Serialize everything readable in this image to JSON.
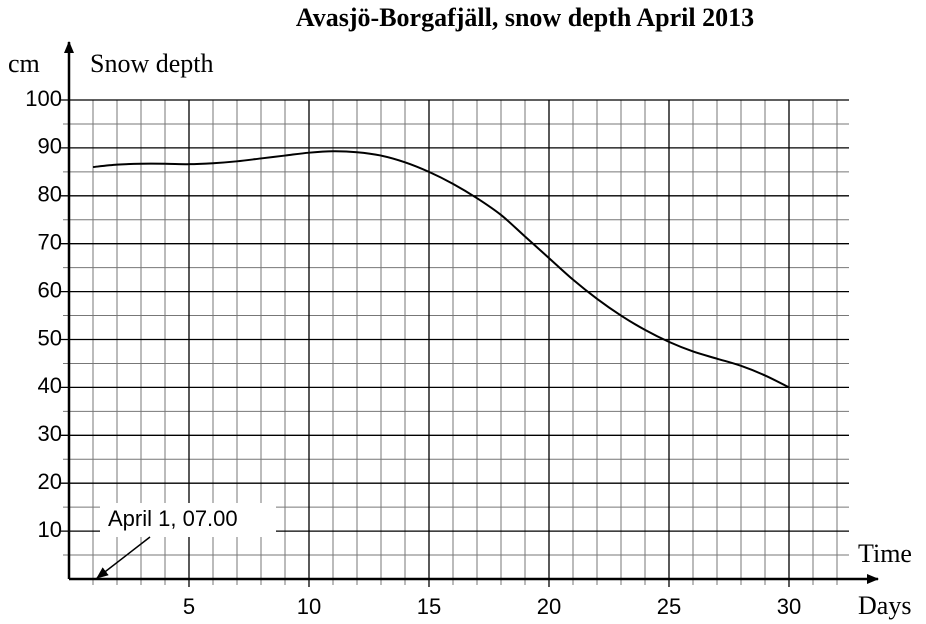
{
  "chart_data": {
    "type": "line",
    "title": "Avasjö-Borgafjäll, snow depth April 2013",
    "y_unit": "cm",
    "y_label": "Snow depth",
    "x_label": "Time",
    "x_unit": "Days",
    "annotation": "April 1, 07.00",
    "x": [
      1,
      2,
      3,
      4,
      5,
      6,
      7,
      8,
      9,
      10,
      11,
      12,
      13,
      14,
      15,
      16,
      17,
      18,
      19,
      20,
      21,
      22,
      23,
      24,
      25,
      26,
      27,
      28,
      29,
      30
    ],
    "series": [
      {
        "name": "Snow depth",
        "color": "#000000",
        "values": [
          86,
          86.5,
          86.7,
          86.7,
          86.6,
          86.8,
          87.2,
          87.8,
          88.4,
          89,
          89.3,
          89.1,
          88.4,
          87,
          85,
          82.5,
          79.5,
          76,
          71.5,
          67,
          62.5,
          58.5,
          55,
          52,
          49.5,
          47.5,
          46,
          44.5,
          42.5,
          40
        ]
      }
    ],
    "xlim": [
      0,
      32.5
    ],
    "ylim": [
      0,
      100
    ],
    "xticks": [
      5,
      10,
      15,
      20,
      25,
      30
    ],
    "yticks": [
      10,
      20,
      30,
      40,
      50,
      60,
      70,
      80,
      90,
      100
    ],
    "xticks_minor": [
      1,
      2,
      3,
      4,
      6,
      7,
      8,
      9,
      11,
      12,
      13,
      14,
      16,
      17,
      18,
      19,
      21,
      22,
      23,
      24,
      26,
      27,
      28,
      29,
      31,
      32
    ],
    "yticks_minor": [
      5,
      15,
      25,
      35,
      45,
      55,
      65,
      75,
      85,
      95
    ],
    "grid": true
  }
}
